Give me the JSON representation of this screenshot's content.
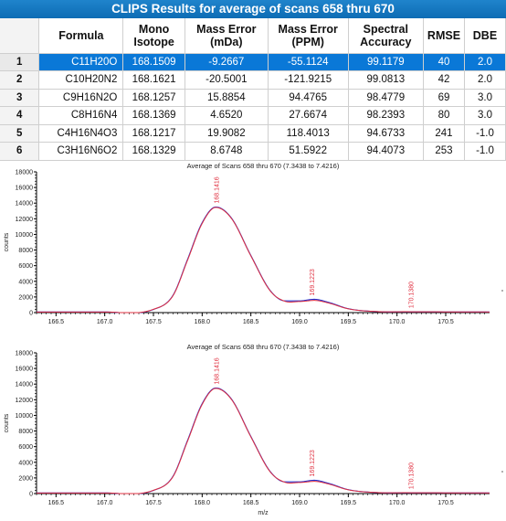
{
  "clips": {
    "title": "CLIPS Results for average of scans 658 thru 670",
    "headers": [
      "",
      "Formula",
      "Mono\nIsotope",
      "Mass Error\n(mDa)",
      "Mass Error\n(PPM)",
      "Spectral\nAccuracy",
      "RMSE",
      "DBE"
    ],
    "selected_row": 0,
    "rows": [
      [
        "1",
        "C11H20O",
        "168.1509",
        "-9.2667",
        "-55.1124",
        "99.1179",
        "40",
        "2.0"
      ],
      [
        "2",
        "C10H20N2",
        "168.1621",
        "-20.5001",
        "-121.9215",
        "99.0813",
        "42",
        "2.0"
      ],
      [
        "3",
        "C9H16N2O",
        "168.1257",
        "15.8854",
        "94.4765",
        "98.4779",
        "69",
        "3.0"
      ],
      [
        "4",
        "C8H16N4",
        "168.1369",
        "4.6520",
        "27.6674",
        "98.2393",
        "80",
        "3.0"
      ],
      [
        "5",
        "C4H16N4O3",
        "168.1217",
        "19.9082",
        "118.4013",
        "94.6733",
        "241",
        "-1.0"
      ],
      [
        "6",
        "C3H16N6O2",
        "168.1329",
        "8.6748",
        "51.5922",
        "94.4073",
        "253",
        "-1.0"
      ]
    ]
  },
  "chart_data": [
    {
      "type": "line",
      "title": "Average of Scans 658 thru 670 (7.3438 to 7.4216)",
      "xlabel": "",
      "ylabel": "counts",
      "xlim": [
        166.3,
        170.95
      ],
      "ylim": [
        0,
        18000
      ],
      "x_ticks": [
        "166.5",
        "167.0",
        "167.5",
        "168.0",
        "168.5",
        "169.0",
        "169.5",
        "170.0",
        "170.5"
      ],
      "y_ticks": [
        "0",
        "2000",
        "4000",
        "6000",
        "8000",
        "10000",
        "12000",
        "14000",
        "16000",
        "18000"
      ],
      "series": [
        {
          "color": "#2030d0",
          "x": [
            166.3,
            167.0,
            167.5,
            167.7,
            167.85,
            168.0,
            168.14,
            168.3,
            168.5,
            168.7,
            168.85,
            169.0,
            169.15,
            169.3,
            169.5,
            169.8,
            170.1,
            170.95
          ],
          "y": [
            80,
            80,
            400,
            2200,
            6800,
            11500,
            13500,
            12100,
            7300,
            2800,
            1500,
            1500,
            1700,
            1300,
            500,
            120,
            100,
            80
          ]
        },
        {
          "color": "#e03040",
          "x": [
            166.3,
            167.0,
            167.5,
            167.7,
            167.85,
            168.0,
            168.14,
            168.3,
            168.5,
            168.7,
            168.85,
            169.0,
            169.15,
            169.3,
            169.5,
            169.8,
            170.1,
            170.95
          ],
          "y": [
            80,
            80,
            420,
            2150,
            6700,
            11400,
            13450,
            12050,
            7250,
            2750,
            1450,
            1420,
            1560,
            1220,
            480,
            130,
            110,
            80
          ]
        }
      ],
      "peak_labels": [
        {
          "x": 168.1416,
          "y": 13500,
          "label": "168.1416"
        },
        {
          "x": 169.1223,
          "y": 1700,
          "label": "169.1223"
        },
        {
          "x": 170.138,
          "y": 100,
          "label": "170.1380"
        }
      ]
    },
    {
      "type": "line",
      "title": "Average of Scans 658 thru 670 (7.3438 to 7.4216)",
      "xlabel": "m/z",
      "ylabel": "counts",
      "xlim": [
        166.3,
        170.95
      ],
      "ylim": [
        0,
        18000
      ],
      "x_ticks": [
        "166.5",
        "167.0",
        "167.5",
        "168.0",
        "168.5",
        "169.0",
        "169.5",
        "170.0",
        "170.5"
      ],
      "y_ticks": [
        "0",
        "2000",
        "4000",
        "6000",
        "8000",
        "10000",
        "12000",
        "14000",
        "16000",
        "18000"
      ],
      "series": [
        {
          "color": "#2030d0",
          "x": [
            166.3,
            167.0,
            167.5,
            167.7,
            167.85,
            168.0,
            168.14,
            168.3,
            168.5,
            168.7,
            168.85,
            169.0,
            169.15,
            169.3,
            169.5,
            169.8,
            170.1,
            170.95
          ],
          "y": [
            80,
            80,
            400,
            2200,
            6800,
            11500,
            13500,
            12100,
            7300,
            2800,
            1500,
            1500,
            1700,
            1300,
            500,
            120,
            100,
            80
          ]
        },
        {
          "color": "#e03040",
          "x": [
            166.3,
            167.0,
            167.5,
            167.7,
            167.85,
            168.0,
            168.14,
            168.3,
            168.5,
            168.7,
            168.85,
            169.0,
            169.15,
            169.3,
            169.5,
            169.8,
            170.1,
            170.95
          ],
          "y": [
            80,
            80,
            420,
            2150,
            6700,
            11400,
            13450,
            12050,
            7250,
            2750,
            1450,
            1420,
            1560,
            1220,
            480,
            130,
            110,
            80
          ]
        }
      ],
      "peak_labels": [
        {
          "x": 168.1416,
          "y": 13500,
          "label": "168.1416"
        },
        {
          "x": 169.1223,
          "y": 1700,
          "label": "169.1223"
        },
        {
          "x": 170.138,
          "y": 100,
          "label": "170.1380"
        }
      ]
    }
  ]
}
